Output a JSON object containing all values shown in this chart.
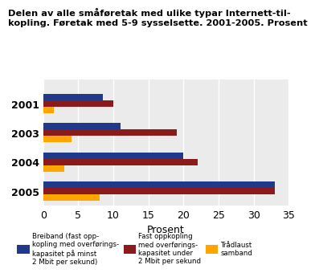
{
  "title": "Delen av alle småføretak med ulike typar Internett-til-\nkopling. Føretak med 5-9 sysselsette. 2001-2005. Prosent",
  "years": [
    "2001",
    "2003",
    "2004",
    "2005"
  ],
  "series": {
    "breiband": [
      8.5,
      11,
      20,
      33
    ],
    "fast_under": [
      10,
      19,
      22,
      33
    ],
    "tradlaust": [
      1.5,
      4,
      3,
      8
    ]
  },
  "colors": {
    "breiband": "#1F3A8A",
    "fast_under": "#8B1A1A",
    "tradlaust": "#FFA500"
  },
  "xlabel": "Prosent",
  "xlim": [
    0,
    35
  ],
  "xticks": [
    0,
    5,
    10,
    15,
    20,
    25,
    30,
    35
  ],
  "legend_labels": {
    "breiband": "Breiband (fast opp-\nkopling med overførings-\nkapasitet på minst\n2 Mbit per sekund)",
    "fast_under": "Fast oppkopling\nmed overførings-\nkapasitet under\n2 Mbit per sekund",
    "tradlaust": "Trådlaust\nsamband"
  },
  "bar_height": 0.22,
  "background_color": "#ebebeb"
}
